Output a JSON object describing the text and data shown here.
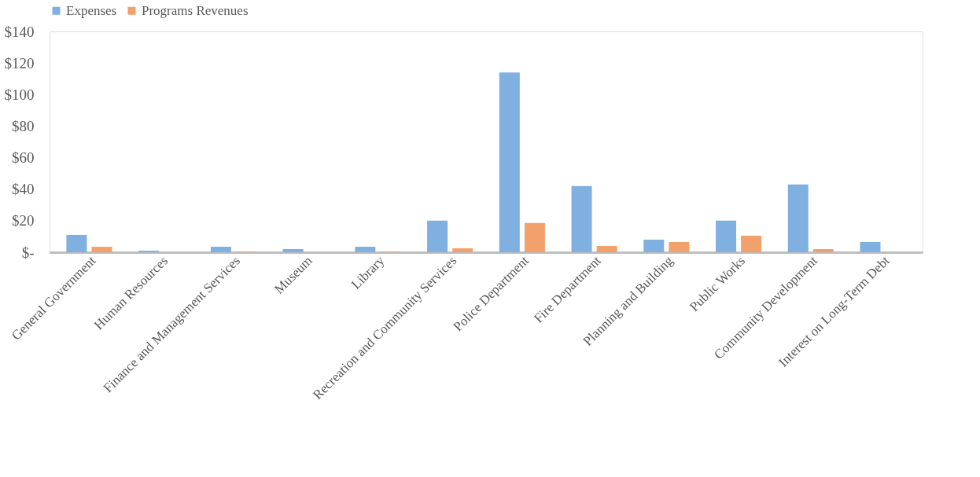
{
  "chart_data": {
    "type": "bar",
    "categories": [
      "General Government",
      "Human Resources",
      "Finance and Management Services",
      "Museum",
      "Library",
      "Recreation and Community Services",
      "Police Department",
      "Fire Department",
      "Planning and Building",
      "Public Works",
      "Community Development",
      "Interest on Long-Term Debt"
    ],
    "series": [
      {
        "name": "Expenses",
        "color": "#7fb0e0",
        "values": [
          11,
          1,
          3.5,
          2,
          3.5,
          20,
          114,
          42,
          8,
          20,
          43,
          6.5
        ]
      },
      {
        "name": "Programs Revenues",
        "color": "#f2a06c",
        "values": [
          3.5,
          null,
          0.5,
          null,
          0.5,
          2.5,
          18.5,
          4,
          6.5,
          10.5,
          2,
          null
        ]
      }
    ],
    "ylim": [
      0,
      140
    ],
    "yticks": [
      {
        "value": 0,
        "label": "$-"
      },
      {
        "value": 20,
        "label": "$20"
      },
      {
        "value": 40,
        "label": "$40"
      },
      {
        "value": 60,
        "label": "$60"
      },
      {
        "value": 80,
        "label": "$80"
      },
      {
        "value": 100,
        "label": "$100"
      },
      {
        "value": 120,
        "label": "$120"
      },
      {
        "value": 140,
        "label": "$140"
      }
    ],
    "grid": false,
    "legend": "top"
  }
}
